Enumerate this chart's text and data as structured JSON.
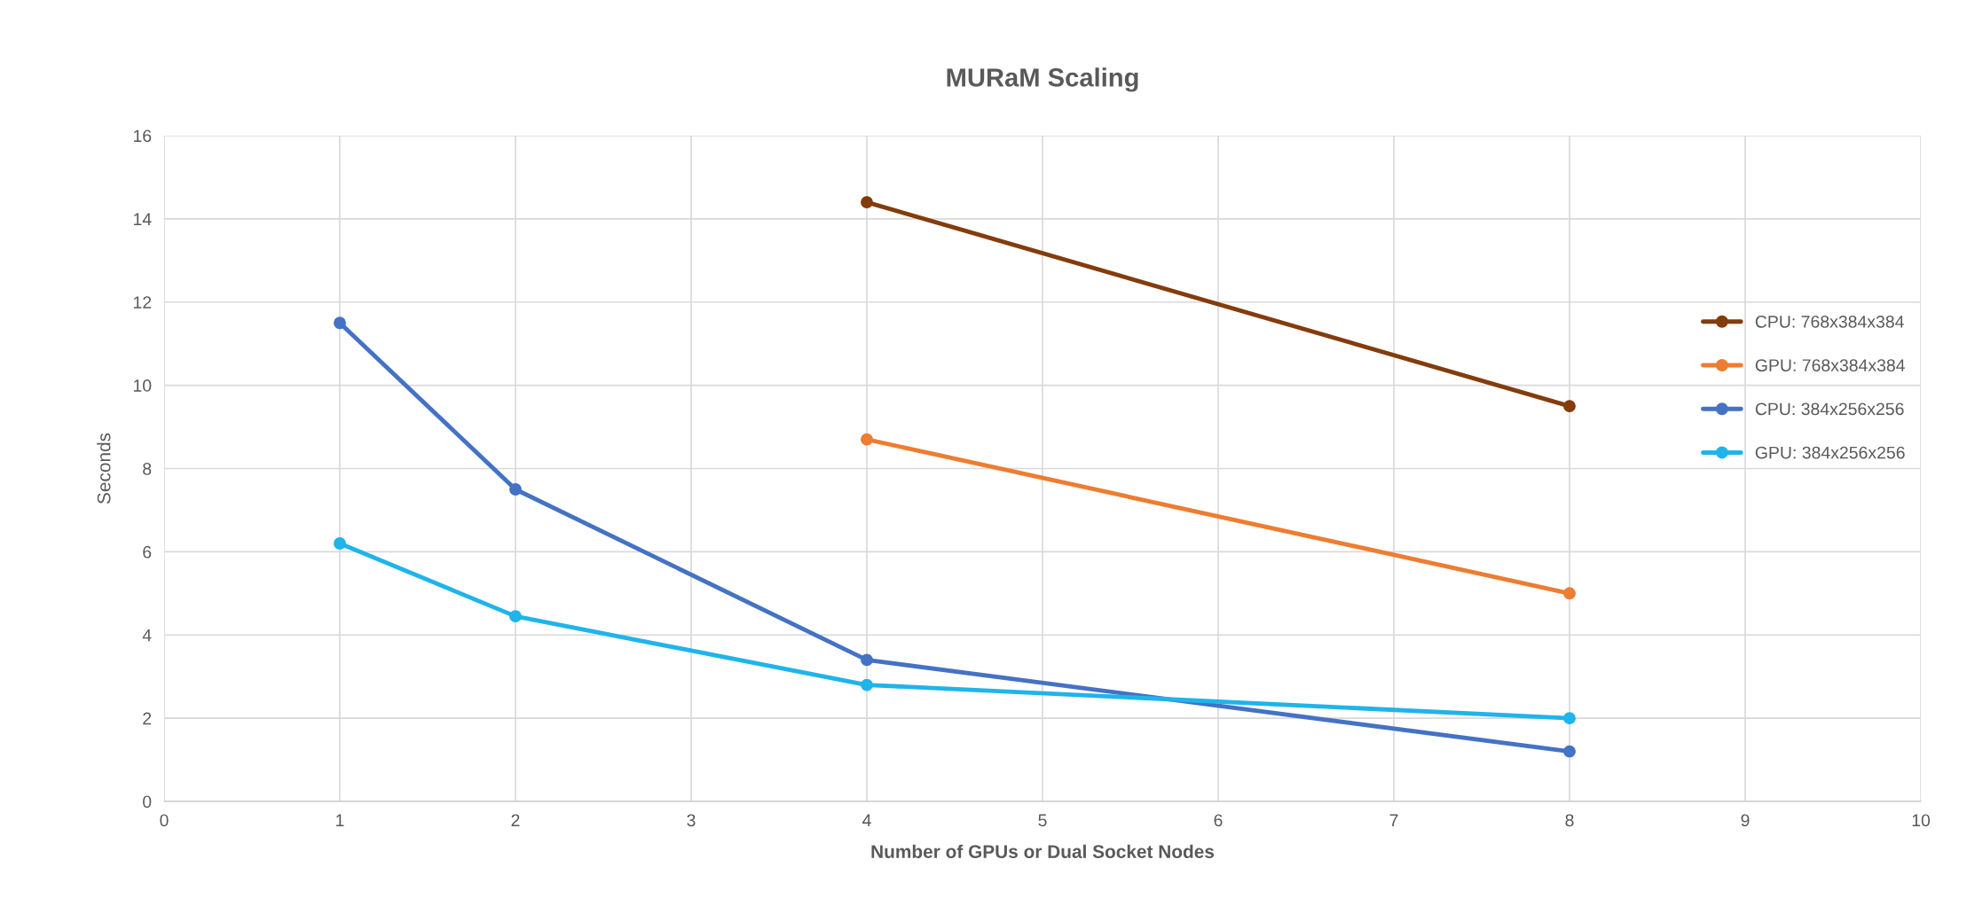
{
  "chart_data": {
    "type": "line",
    "title": "MURaM Scaling",
    "xlabel": "Number of GPUs or Dual Socket Nodes",
    "ylabel": "Seconds",
    "xlim": [
      0,
      10
    ],
    "xticks": [
      0,
      1,
      2,
      3,
      4,
      5,
      6,
      7,
      8,
      9,
      10
    ],
    "ylim": [
      0,
      16
    ],
    "yticks": [
      0,
      2,
      4,
      6,
      8,
      10,
      12,
      14,
      16
    ],
    "grid": true,
    "legend": "right",
    "marker": "circle",
    "line_style": "solid",
    "series": [
      {
        "name": "CPU: 768x384x384",
        "color": "#843c0c",
        "x": [
          4,
          8
        ],
        "values": [
          14.4,
          9.5
        ]
      },
      {
        "name": "GPU: 768x384x384",
        "color": "#ed7d31",
        "x": [
          4,
          8
        ],
        "values": [
          8.7,
          5.0
        ]
      },
      {
        "name": "CPU: 384x256x256",
        "color": "#4472c4",
        "x": [
          1,
          2,
          4,
          8
        ],
        "values": [
          11.5,
          7.5,
          3.4,
          1.2
        ]
      },
      {
        "name": "GPU: 384x256x256",
        "color": "#1fb4ea",
        "x": [
          1,
          2,
          4,
          8
        ],
        "values": [
          6.2,
          4.45,
          2.8,
          2.0
        ]
      }
    ]
  }
}
